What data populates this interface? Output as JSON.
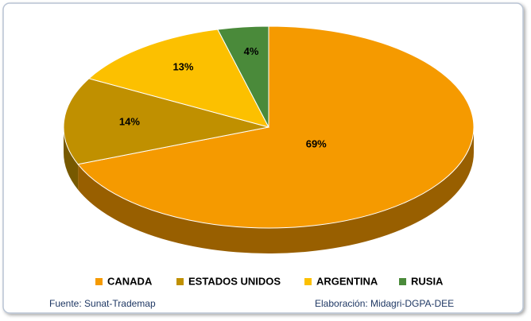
{
  "chart_data": {
    "type": "pie",
    "categories": [
      "CANADA",
      "ESTADOS UNIDOS",
      "ARGENTINA",
      "RUSIA"
    ],
    "values": [
      69,
      14,
      13,
      4
    ],
    "value_labels": [
      "69%",
      "14%",
      "13%",
      "4%"
    ],
    "colors": [
      "#f59a00",
      "#c09000",
      "#fcc000",
      "#4a8a3a"
    ],
    "legend": "bottom"
  },
  "footer": {
    "source": "Fuente: Sunat-Trademap",
    "credit": "Elaboración: Midagri-DGPA-DEE"
  }
}
